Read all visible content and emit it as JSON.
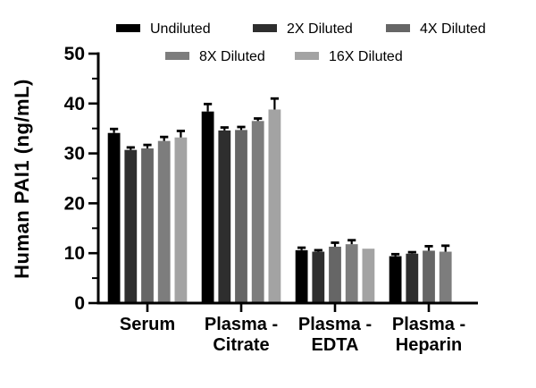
{
  "figure": {
    "background": "#ffffff",
    "axis_color": "#000000",
    "text_color": "#000000"
  },
  "chart_data": {
    "type": "bar",
    "title": "",
    "ylabel": "Human PAI1 (ng/mL)",
    "xlabel": "",
    "ylim": [
      0,
      50
    ],
    "yticks": [
      0,
      10,
      20,
      30,
      40,
      50
    ],
    "minor_yticks": [
      5,
      15,
      25,
      35,
      45
    ],
    "grid": false,
    "legend_position": "top",
    "error_bars": "upper-half, black caps",
    "categories": [
      "Serum",
      "Plasma - Citrate",
      "Plasma - EDTA",
      "Plasma - Heparin"
    ],
    "category_lines": [
      [
        "Serum"
      ],
      [
        "Plasma -",
        "Citrate"
      ],
      [
        "Plasma -",
        "EDTA"
      ],
      [
        "Plasma -",
        "Heparin"
      ]
    ],
    "series": [
      {
        "name": "Undiluted",
        "color": "#000000",
        "values": [
          34.1,
          38.4,
          10.6,
          9.4
        ],
        "errors": [
          0.8,
          1.5,
          0.5,
          0.4
        ]
      },
      {
        "name": "2X Diluted",
        "color": "#2e2e2e",
        "values": [
          30.7,
          34.6,
          10.3,
          9.9
        ],
        "errors": [
          0.5,
          0.6,
          0.3,
          0.3
        ]
      },
      {
        "name": "4X Diluted",
        "color": "#666666",
        "values": [
          31.0,
          34.7,
          11.3,
          10.5
        ],
        "errors": [
          0.7,
          0.6,
          0.8,
          0.9
        ]
      },
      {
        "name": "8X Diluted",
        "color": "#7d7d7d",
        "values": [
          32.5,
          36.5,
          11.8,
          10.3
        ],
        "errors": [
          0.8,
          0.5,
          0.8,
          1.2
        ]
      },
      {
        "name": "16X Diluted",
        "color": "#a3a3a3",
        "values": [
          33.2,
          38.8,
          10.9,
          null
        ],
        "errors": [
          1.3,
          2.2,
          0,
          null
        ]
      }
    ],
    "legend_rows": [
      [
        "Undiluted",
        "2X Diluted",
        "4X Diluted"
      ],
      [
        "8X Diluted",
        "16X Diluted"
      ]
    ]
  }
}
